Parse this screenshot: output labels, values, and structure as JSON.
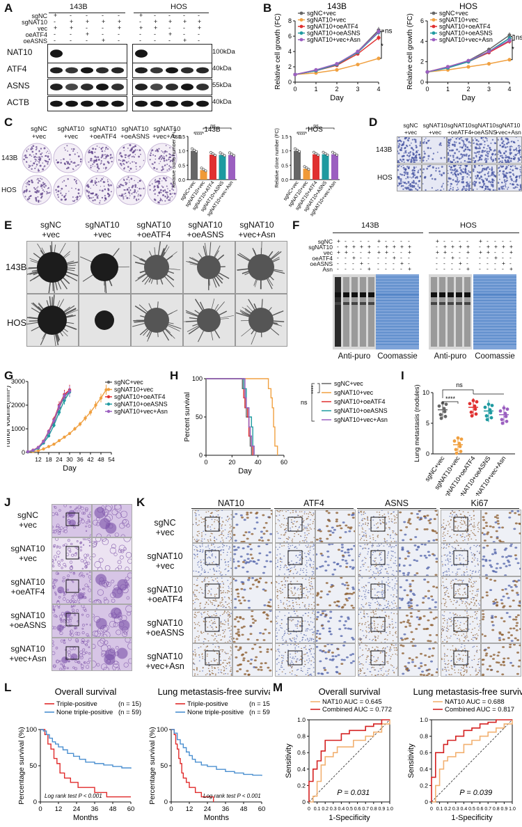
{
  "panels": {
    "A": "A",
    "B": "B",
    "C": "C",
    "D": "D",
    "E": "E",
    "F": "F",
    "G": "G",
    "H": "H",
    "I": "I",
    "J": "J",
    "K": "K",
    "L": "L",
    "M": "M"
  },
  "A": {
    "cell_lines": [
      "143B",
      "HOS"
    ],
    "row_labels": [
      "sgNC",
      "sgNAT10",
      "vec",
      "oeATF4",
      "oeASNS"
    ],
    "signs": [
      [
        "+",
        "-",
        "-",
        "-",
        "-"
      ],
      [
        "-",
        "+",
        "+",
        "+",
        "+"
      ],
      [
        "+",
        "+",
        "-",
        "-",
        "+"
      ],
      [
        "-",
        "-",
        "+",
        "-",
        "-"
      ],
      [
        "-",
        "-",
        "-",
        "+",
        "-"
      ]
    ],
    "blots": [
      "NAT10",
      "ATF4",
      "ASNS",
      "ACTB"
    ],
    "mw": [
      "100kDa",
      "40kDa",
      "55kDa",
      "40kDa"
    ]
  },
  "legend5": [
    "sgNC+vec",
    "sgNAT10+vec",
    "sgNAT10+oeATF4",
    "sgNAT10+oeASNS",
    "sgNAT10+vec+Asn"
  ],
  "colors": {
    "sgNC": "#666666",
    "sgNAT10": "#f0a040",
    "oeATF4": "#e03030",
    "oeASNS": "#1e9aa0",
    "Asn": "#9b5fc0",
    "barNAT10": "#f09a38",
    "coomassie": "#4a7fc4"
  },
  "chart_data": [
    {
      "type": "line",
      "panel": "B",
      "title": "143B",
      "xlabel": "Day",
      "ylabel": "Relative cell growth (FC)",
      "x": [
        0,
        1,
        2,
        3,
        4
      ],
      "ylim": [
        0,
        8
      ],
      "xlim": [
        0,
        4
      ],
      "yticks": [
        "0",
        "2",
        "4",
        "6",
        "8"
      ],
      "xticks": [
        "0",
        "1",
        "2",
        "3",
        "4"
      ],
      "series": [
        {
          "name": "sgNC+vec",
          "values": [
            1,
            1.5,
            2.3,
            4.0,
            6.8
          ]
        },
        {
          "name": "sgNAT10+vec",
          "values": [
            1,
            1.2,
            1.6,
            2.3,
            3.1
          ]
        },
        {
          "name": "sgNAT10+oeATF4",
          "values": [
            1,
            1.5,
            2.2,
            3.7,
            5.8
          ]
        },
        {
          "name": "sgNAT10+oeASNS",
          "values": [
            1,
            1.5,
            2.3,
            3.9,
            6.5
          ]
        },
        {
          "name": "sgNAT10+vec+Asn",
          "values": [
            1,
            1.6,
            2.4,
            4.0,
            6.6
          ]
        }
      ],
      "sig": [
        "ns",
        "*"
      ]
    },
    {
      "type": "line",
      "panel": "B",
      "title": "HOS",
      "xlabel": "Day",
      "ylabel": "Relative cell growth (FC)",
      "x": [
        0,
        1,
        2,
        3,
        4
      ],
      "ylim": [
        0,
        6
      ],
      "xlim": [
        0,
        4
      ],
      "yticks": [
        "0",
        "2",
        "4",
        "6"
      ],
      "xticks": [
        "0",
        "1",
        "2",
        "3",
        "4"
      ],
      "series": [
        {
          "name": "sgNC+vec",
          "values": [
            1,
            1.5,
            2.1,
            3.2,
            4.6
          ]
        },
        {
          "name": "sgNAT10+vec",
          "values": [
            1,
            1.2,
            1.5,
            1.8,
            2.2
          ]
        },
        {
          "name": "sgNAT10+oeATF4",
          "values": [
            1,
            1.5,
            2.0,
            2.9,
            4.0
          ]
        },
        {
          "name": "sgNAT10+oeASNS",
          "values": [
            1,
            1.4,
            2.0,
            3.0,
            4.3
          ]
        },
        {
          "name": "sgNAT10+vec+Asn",
          "values": [
            1,
            1.5,
            2.1,
            3.0,
            4.1
          ]
        }
      ],
      "sig": [
        "ns",
        "*"
      ]
    },
    {
      "type": "bar",
      "panel": "C",
      "title": "143B",
      "ylabel": "Relative clone number (FC)",
      "categories": [
        "sgNC+vec",
        "sgNAT10+vec",
        "sgNAT10+ATF4",
        "sgNAT10+ASNS",
        "sgNAT10+vec+Asn"
      ],
      "values": [
        1.0,
        0.33,
        0.87,
        0.86,
        0.86
      ],
      "ylim": [
        0,
        1.5
      ],
      "yticks": [
        "0.0",
        "0.5",
        "1.0",
        "1.5"
      ],
      "sig": [
        "****",
        "ns"
      ]
    },
    {
      "type": "bar",
      "panel": "C",
      "title": "HOS",
      "ylabel": "Relative clone number (FC)",
      "categories": [
        "sgNC+vec",
        "sgNAT10+vec",
        "sgNAT10+ATF4",
        "sgNAT10+ASNS",
        "sgNAT10+vec+Asn"
      ],
      "values": [
        1.0,
        0.38,
        0.88,
        0.88,
        0.88
      ],
      "ylim": [
        0,
        1.5
      ],
      "yticks": [
        "0.0",
        "0.5",
        "1.0",
        "1.5"
      ],
      "sig": [
        "****",
        "ns"
      ]
    },
    {
      "type": "line",
      "panel": "G",
      "xlabel": "Day",
      "ylabel": "Tumor volume(mm³)",
      "ylim": [
        0,
        3000
      ],
      "xlim": [
        6,
        54
      ],
      "yticks": [
        "0",
        "1000",
        "2000",
        "3000"
      ],
      "xticks": [
        "12",
        "18",
        "24",
        "30",
        "36",
        "42",
        "48",
        "54"
      ],
      "series": [
        {
          "name": "sgNC+vec",
          "x": [
            6,
            9,
            12,
            15,
            18,
            21,
            24,
            27,
            30
          ],
          "values": [
            30,
            90,
            200,
            450,
            850,
            1300,
            1900,
            2350,
            2600
          ]
        },
        {
          "name": "sgNAT10+vec",
          "x": [
            6,
            9,
            12,
            15,
            18,
            21,
            24,
            27,
            30,
            33,
            36,
            39,
            42,
            45,
            48,
            51
          ],
          "values": [
            20,
            40,
            80,
            150,
            250,
            350,
            500,
            650,
            800,
            1000,
            1200,
            1450,
            1700,
            2000,
            2300,
            2650
          ]
        },
        {
          "name": "sgNAT10+oeATF4",
          "x": [
            6,
            9,
            12,
            15,
            18,
            21,
            24,
            27,
            30
          ],
          "values": [
            30,
            100,
            220,
            480,
            900,
            1400,
            2000,
            2450,
            2650
          ]
        },
        {
          "name": "sgNAT10+oeASNS",
          "x": [
            6,
            9,
            12,
            15,
            18,
            21,
            24,
            27,
            30
          ],
          "values": [
            25,
            80,
            180,
            400,
            700,
            1150,
            1700,
            2200,
            2550
          ]
        },
        {
          "name": "sgNAT10+vec+Asn",
          "x": [
            6,
            9,
            12,
            15,
            18,
            21,
            24,
            27,
            30
          ],
          "values": [
            30,
            95,
            210,
            460,
            880,
            1350,
            1950,
            2400,
            2600
          ]
        }
      ]
    },
    {
      "type": "line",
      "panel": "H",
      "xlabel": "Day",
      "ylabel": "Percent survival",
      "ylim": [
        0,
        100
      ],
      "xlim": [
        0,
        60
      ],
      "yticks": [
        "0",
        "50",
        "100"
      ],
      "xticks": [
        "0",
        "20",
        "40",
        "60"
      ],
      "series": [
        {
          "name": "sgNC+vec",
          "x": [
            0,
            27,
            28,
            30,
            31,
            33,
            34,
            35
          ],
          "values": [
            100,
            100,
            87,
            62,
            50,
            37,
            12,
            0
          ]
        },
        {
          "name": "sgNAT10+vec",
          "x": [
            0,
            47,
            48,
            50,
            51,
            52,
            53,
            55
          ],
          "values": [
            100,
            100,
            87,
            75,
            62,
            37,
            12,
            0
          ]
        },
        {
          "name": "sgNAT10+oeATF4",
          "x": [
            0,
            27,
            29,
            30,
            32,
            33,
            35,
            36
          ],
          "values": [
            100,
            100,
            75,
            62,
            50,
            25,
            12,
            0
          ]
        },
        {
          "name": "sgNAT10+oeASNS",
          "x": [
            0,
            28,
            29,
            31,
            33,
            35,
            36,
            37
          ],
          "values": [
            100,
            100,
            87,
            62,
            50,
            37,
            12,
            0
          ]
        },
        {
          "name": "sgNAT10+vec+Asn",
          "x": [
            0,
            28,
            30,
            31,
            33,
            34,
            35,
            37
          ],
          "values": [
            100,
            100,
            75,
            62,
            37,
            25,
            12,
            0
          ]
        }
      ],
      "sig": [
        "ns",
        "****"
      ]
    },
    {
      "type": "scatter",
      "panel": "I",
      "ylabel": "Lung metastasis (nodules)",
      "categories": [
        "sgNC+vec",
        "sgNAT10+vec",
        "sgNAT10+oeATF4",
        "sgNAT10+oeASNS",
        "sgNAT10+vec+Asn"
      ],
      "means": [
        7.2,
        1.5,
        7.6,
        7.0,
        6.4
      ],
      "ylim": [
        0,
        10
      ],
      "yticks": [
        "0",
        "5",
        "10"
      ],
      "sig": [
        "****",
        "ns"
      ]
    },
    {
      "type": "line",
      "panel": "L",
      "title": "Overall survival",
      "xlabel": "Months",
      "ylabel": "Percentage survival (%)",
      "ylim": [
        0,
        100
      ],
      "xlim": [
        0,
        60
      ],
      "yticks": [
        "0",
        "50",
        "100"
      ],
      "xticks": [
        "0",
        "12",
        "24",
        "36",
        "48",
        "60"
      ],
      "series": [
        {
          "name": "Triple-positive",
          "n": "(n = 15)",
          "x": [
            0,
            3,
            5,
            7,
            9,
            11,
            13,
            16,
            20,
            25,
            30,
            36,
            44,
            50,
            60
          ],
          "values": [
            100,
            93,
            80,
            73,
            60,
            53,
            40,
            33,
            27,
            20,
            20,
            13,
            7,
            7,
            7
          ]
        },
        {
          "name": "None triple-positive",
          "n": "(n = 59)",
          "x": [
            0,
            2,
            4,
            6,
            8,
            10,
            12,
            15,
            18,
            22,
            26,
            30,
            36,
            42,
            48,
            54,
            60
          ],
          "values": [
            100,
            98,
            93,
            88,
            83,
            80,
            76,
            72,
            67,
            63,
            59,
            55,
            53,
            51,
            49,
            47,
            46
          ]
        }
      ],
      "note": "Log rank test P < 0.001"
    },
    {
      "type": "line",
      "panel": "L",
      "title": "Lung metastasis-free survival",
      "xlabel": "Months",
      "ylabel": "Percentage survival (%)",
      "ylim": [
        0,
        100
      ],
      "xlim": [
        0,
        60
      ],
      "yticks": [
        "0",
        "50",
        "100"
      ],
      "xticks": [
        "0",
        "12",
        "24",
        "36",
        "48",
        "60"
      ],
      "series": [
        {
          "name": "Triple-positive",
          "n": "(n = 15)",
          "x": [
            0,
            2,
            3,
            4,
            5,
            6,
            7,
            8,
            10,
            12,
            16,
            20,
            24,
            28
          ],
          "values": [
            100,
            93,
            80,
            73,
            60,
            53,
            40,
            33,
            27,
            20,
            13,
            7,
            7,
            0
          ]
        },
        {
          "name": "None triple-positive",
          "n": "(n = 59)",
          "x": [
            0,
            2,
            4,
            6,
            8,
            10,
            12,
            14,
            16,
            20,
            24,
            30,
            36,
            42,
            48,
            54,
            60
          ],
          "values": [
            100,
            95,
            86,
            80,
            75,
            69,
            64,
            59,
            55,
            51,
            49,
            45,
            42,
            40,
            38,
            37,
            36
          ]
        }
      ],
      "note": "Log rank test P < 0.001"
    },
    {
      "type": "line",
      "panel": "M",
      "title": "Overall survival",
      "xlabel": "1-Specificity",
      "ylabel": "Sensitivity",
      "xlim": [
        0,
        1
      ],
      "ylim": [
        0,
        1
      ],
      "yticks": [
        "0",
        "0.2",
        "0.4",
        "0.6",
        "0.8",
        "1.0"
      ],
      "xticks": [
        "0",
        "0.1",
        "0.2",
        "0.3",
        "0.4",
        "0.5",
        "0.6",
        "0.7",
        "0.8",
        "0.9",
        "1.0"
      ],
      "series": [
        {
          "name": "NAT10 AUC = 0.645",
          "x": [
            0,
            0.05,
            0.1,
            0.15,
            0.2,
            0.3,
            0.35,
            0.5,
            0.55,
            0.7,
            0.8,
            0.9,
            1.0
          ],
          "values": [
            0,
            0.07,
            0.25,
            0.45,
            0.55,
            0.6,
            0.67,
            0.67,
            0.75,
            0.8,
            0.85,
            0.95,
            1.0
          ]
        },
        {
          "name": "Combined AUC = 0.772",
          "x": [
            0,
            0,
            0.05,
            0.1,
            0.15,
            0.2,
            0.3,
            0.4,
            0.5,
            0.6,
            0.7,
            0.8,
            0.9,
            1.0
          ],
          "values": [
            0,
            0.25,
            0.4,
            0.5,
            0.62,
            0.75,
            0.75,
            0.83,
            0.87,
            0.87,
            0.92,
            0.95,
            1.0,
            1.0
          ]
        }
      ],
      "note": "P = 0.031"
    },
    {
      "type": "line",
      "panel": "M",
      "title": "Lung metastasis-free survival",
      "xlabel": "1-Specificity",
      "ylabel": "Sensitivity",
      "xlim": [
        0,
        1
      ],
      "ylim": [
        0,
        1
      ],
      "yticks": [
        "0",
        "0.2",
        "0.4",
        "0.6",
        "0.8",
        "1.0"
      ],
      "xticks": [
        "0",
        "0.1",
        "0.2",
        "0.3",
        "0.4",
        "0.5",
        "0.6",
        "0.7",
        "0.8",
        "0.9",
        "1.0"
      ],
      "series": [
        {
          "name": "NAT10 AUC = 0.688",
          "x": [
            0,
            0.05,
            0.1,
            0.15,
            0.2,
            0.3,
            0.4,
            0.5,
            0.6,
            0.7,
            0.8,
            0.9,
            1.0
          ],
          "values": [
            0,
            0.2,
            0.4,
            0.5,
            0.55,
            0.6,
            0.7,
            0.75,
            0.8,
            0.85,
            0.9,
            0.95,
            1.0
          ]
        },
        {
          "name": "Combined AUC = 0.817",
          "x": [
            0,
            0,
            0.05,
            0.1,
            0.15,
            0.2,
            0.3,
            0.4,
            0.5,
            0.6,
            0.7,
            0.8,
            0.9,
            1.0
          ],
          "values": [
            0,
            0.3,
            0.6,
            0.6,
            0.7,
            0.75,
            0.8,
            0.87,
            0.9,
            0.95,
            0.97,
            1.0,
            1.0,
            1.0
          ]
        }
      ],
      "note": "P = 0.039"
    }
  ],
  "C": {
    "col_labels": [
      "sgNC\n+vec",
      "sgNAT10\n+vec",
      "sgNAT10\n+oeATF4",
      "sgNAT10\n+oeASNS",
      "sgNAT10\n+vec+Asn"
    ],
    "rows": [
      "143B",
      "HOS"
    ]
  },
  "D": {
    "col_labels": [
      "sgNC\n+vec",
      "sgNAT10\n+vec",
      "sgNAT10\n+oeATF4",
      "sgNAT10\n+oeASNS",
      "sgNAT10\n+vec+Asn"
    ],
    "rows": [
      "143B",
      "HOS"
    ]
  },
  "E": {
    "col_labels": [
      "sgNC\n+vec",
      "sgNAT10\n+vec",
      "sgNAT10\n+oeATF4",
      "sgNAT10\n+oeASNS",
      "sgNAT10\n+vec+Asn"
    ],
    "rows": [
      "143B",
      "HOS"
    ]
  },
  "F": {
    "cell_lines": [
      "143B",
      "HOS"
    ],
    "row_labels": [
      "sgNC",
      "sgNAT10",
      "vec",
      "oeATF4",
      "oeASNS",
      "Asn"
    ],
    "signs": [
      [
        "+",
        "-",
        "-",
        "-",
        "-"
      ],
      [
        "-",
        "+",
        "+",
        "+",
        "+"
      ],
      [
        "+",
        "+",
        "-",
        "-",
        "+"
      ],
      [
        "-",
        "-",
        "+",
        "-",
        "-"
      ],
      [
        "-",
        "-",
        "-",
        "+",
        "-"
      ],
      [
        "-",
        "-",
        "-",
        "-",
        "+"
      ]
    ],
    "captions": [
      "Anti-puro",
      "Coomassie",
      "Anti-puro",
      "Coomassie"
    ]
  },
  "J": {
    "rows": [
      "sgNC\n+vec",
      "sgNAT10\n+vec",
      "sgNAT10\n+oeATF4",
      "sgNAT10\n+oeASNS",
      "sgNAT10\n+vec+Asn"
    ]
  },
  "K": {
    "columns": [
      "NAT10",
      "ATF4",
      "ASNS",
      "Ki67"
    ],
    "rows": [
      "sgNC\n+vec",
      "sgNAT10\n+vec",
      "sgNAT10\n+oeATF4",
      "sgNAT10\n+oeASNS",
      "sgNAT10\n+vec+Asn"
    ]
  }
}
